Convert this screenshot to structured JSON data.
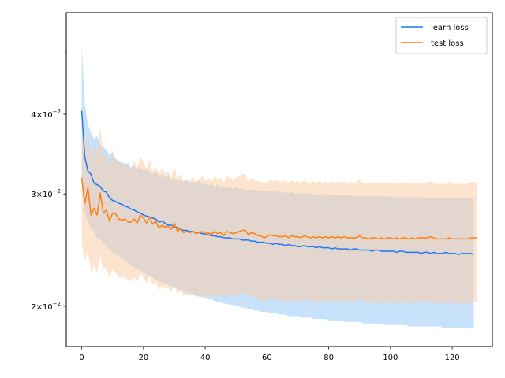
{
  "chart_data": {
    "type": "line",
    "title": "",
    "xlabel": "",
    "ylabel": "",
    "xlim": [
      -5,
      133
    ],
    "ylim": [
      0.0173,
      0.0577
    ],
    "yscale": "log",
    "grid": false,
    "legend_position": "top-right",
    "x_ticks": [
      0,
      20,
      40,
      60,
      80,
      100,
      120
    ],
    "x_tick_labels": [
      "0",
      "20",
      "40",
      "60",
      "80",
      "100",
      "120"
    ],
    "y_ticks": [
      0.02,
      0.03,
      0.04
    ],
    "y_tick_labels": [
      {
        "mantissa": "2",
        "exponent": "−2"
      },
      {
        "mantissa": "3",
        "exponent": "−2"
      },
      {
        "mantissa": "4",
        "exponent": "−2"
      }
    ],
    "y_minor_ticks": [
      0.05
    ],
    "series": [
      {
        "name": "learn loss",
        "color": "#1f77f4",
        "band_color": "#9ccafa",
        "x_step": 1,
        "values": [
          0.0405,
          0.0343,
          0.0326,
          0.0322,
          0.0312,
          0.031,
          0.0308,
          0.0303,
          0.0302,
          0.0296,
          0.0293,
          0.0292,
          0.029,
          0.0289,
          0.0287,
          0.0286,
          0.0284,
          0.0283,
          0.0281,
          0.028,
          0.0278,
          0.0277,
          0.0276,
          0.0275,
          0.0274,
          0.0271,
          0.0272,
          0.027,
          0.0268,
          0.0268,
          0.0266,
          0.0266,
          0.0264,
          0.0263,
          0.0263,
          0.0262,
          0.0262,
          0.0261,
          0.0261,
          0.026,
          0.0259,
          0.0259,
          0.0258,
          0.0258,
          0.0257,
          0.0257,
          0.0256,
          0.0256,
          0.0256,
          0.0255,
          0.0255,
          0.0255,
          0.0254,
          0.0254,
          0.0254,
          0.0253,
          0.0253,
          0.0252,
          0.0252,
          0.0252,
          0.0251,
          0.0251,
          0.025,
          0.0251,
          0.025,
          0.025,
          0.0249,
          0.025,
          0.0249,
          0.0249,
          0.0248,
          0.0248,
          0.0249,
          0.0248,
          0.0248,
          0.0248,
          0.0247,
          0.0248,
          0.0247,
          0.0247,
          0.0247,
          0.0246,
          0.0247,
          0.0246,
          0.0246,
          0.0246,
          0.0246,
          0.0245,
          0.0246,
          0.0246,
          0.0245,
          0.0245,
          0.0245,
          0.0245,
          0.0244,
          0.0245,
          0.0245,
          0.0244,
          0.0244,
          0.0244,
          0.0244,
          0.0244,
          0.0243,
          0.0244,
          0.0244,
          0.0243,
          0.0243,
          0.0243,
          0.0243,
          0.0243,
          0.0242,
          0.0243,
          0.0243,
          0.0242,
          0.0243,
          0.0242,
          0.0242,
          0.0242,
          0.0243,
          0.0242,
          0.0242,
          0.0242,
          0.0241,
          0.0242,
          0.0242,
          0.0242,
          0.0242,
          0.0241
        ],
        "upper": [
          0.0515,
          0.0415,
          0.0385,
          0.0375,
          0.0365,
          0.037,
          0.0358,
          0.0355,
          0.0352,
          0.0345,
          0.035,
          0.034,
          0.0338,
          0.0336,
          0.0334,
          0.0335,
          0.033,
          0.0332,
          0.0328,
          0.033,
          0.0326,
          0.0328,
          0.0324,
          0.0322,
          0.0325,
          0.032,
          0.0322,
          0.0318,
          0.032,
          0.0316,
          0.0318,
          0.0315,
          0.0316,
          0.0313,
          0.0315,
          0.0312,
          0.0314,
          0.0311,
          0.0316,
          0.031,
          0.0312,
          0.0309,
          0.0311,
          0.0308,
          0.031,
          0.0307,
          0.0309,
          0.0306,
          0.0308,
          0.0305,
          0.0307,
          0.0305,
          0.0306,
          0.0304,
          0.0305,
          0.0304,
          0.0305,
          0.0303,
          0.0304,
          0.0303,
          0.0304,
          0.0302,
          0.0303,
          0.0302,
          0.0303,
          0.0301,
          0.0302,
          0.0301,
          0.0302,
          0.03,
          0.0301,
          0.03,
          0.0301,
          0.03,
          0.0301,
          0.0299,
          0.03,
          0.0299,
          0.03,
          0.0299,
          0.03,
          0.0298,
          0.0299,
          0.0298,
          0.0299,
          0.0298,
          0.0299,
          0.0298,
          0.0299,
          0.0297,
          0.0298,
          0.0298,
          0.0298,
          0.0297,
          0.0298,
          0.0297,
          0.0298,
          0.0297,
          0.0298,
          0.0297,
          0.0297,
          0.0297,
          0.0297,
          0.0296,
          0.0297,
          0.0296,
          0.0297,
          0.0296,
          0.0297,
          0.0296,
          0.0297,
          0.0296,
          0.0296,
          0.0296,
          0.0296,
          0.0296,
          0.0296,
          0.0296,
          0.0296,
          0.0296,
          0.0296,
          0.0296,
          0.0296,
          0.0296,
          0.0296,
          0.0296,
          0.0296,
          0.0296
        ],
        "lower": [
          0.0312,
          0.028,
          0.0272,
          0.0265,
          0.0262,
          0.0256,
          0.0255,
          0.0251,
          0.0249,
          0.0245,
          0.0243,
          0.0241,
          0.024,
          0.0238,
          0.0236,
          0.0234,
          0.0232,
          0.023,
          0.0229,
          0.0227,
          0.0226,
          0.0224,
          0.0223,
          0.0222,
          0.022,
          0.0219,
          0.0218,
          0.0217,
          0.0216,
          0.0215,
          0.0214,
          0.0213,
          0.0212,
          0.0211,
          0.021,
          0.021,
          0.0209,
          0.0208,
          0.0207,
          0.0207,
          0.0206,
          0.0205,
          0.0205,
          0.0204,
          0.0203,
          0.0203,
          0.0202,
          0.0202,
          0.0201,
          0.0201,
          0.02,
          0.02,
          0.0199,
          0.0199,
          0.0198,
          0.0198,
          0.0197,
          0.0197,
          0.0196,
          0.0196,
          0.0196,
          0.0195,
          0.0195,
          0.0195,
          0.0194,
          0.0194,
          0.0194,
          0.0193,
          0.0193,
          0.0193,
          0.0193,
          0.0192,
          0.0192,
          0.0192,
          0.0192,
          0.0191,
          0.0191,
          0.0191,
          0.0191,
          0.0191,
          0.019,
          0.019,
          0.019,
          0.019,
          0.019,
          0.0189,
          0.0189,
          0.0189,
          0.0189,
          0.0189,
          0.0189,
          0.0188,
          0.0188,
          0.0188,
          0.0188,
          0.0188,
          0.0188,
          0.0188,
          0.0187,
          0.0187,
          0.0187,
          0.0187,
          0.0187,
          0.0187,
          0.0187,
          0.0187,
          0.0186,
          0.0186,
          0.0186,
          0.0186,
          0.0186,
          0.0186,
          0.0186,
          0.0186,
          0.0186,
          0.0186,
          0.0186,
          0.0185,
          0.0185,
          0.0185,
          0.0185,
          0.0185,
          0.0185,
          0.0185,
          0.0185,
          0.0185,
          0.0185,
          0.0185
        ]
      },
      {
        "name": "test loss",
        "color": "#ff7f0e",
        "band_color": "#fbc9a0",
        "x_step": 1,
        "values": [
          0.0318,
          0.029,
          0.0307,
          0.0278,
          0.0285,
          0.0278,
          0.0301,
          0.028,
          0.0283,
          0.0272,
          0.028,
          0.0279,
          0.0274,
          0.0273,
          0.0274,
          0.0271,
          0.0271,
          0.0274,
          0.027,
          0.0278,
          0.0275,
          0.027,
          0.0276,
          0.0269,
          0.0272,
          0.0265,
          0.0268,
          0.0266,
          0.0267,
          0.0264,
          0.027,
          0.0262,
          0.0265,
          0.0261,
          0.0262,
          0.0261,
          0.0262,
          0.026,
          0.0261,
          0.0262,
          0.026,
          0.0261,
          0.0259,
          0.0262,
          0.026,
          0.0261,
          0.0258,
          0.0262,
          0.0261,
          0.026,
          0.0261,
          0.0262,
          0.0263,
          0.0263,
          0.0259,
          0.0261,
          0.026,
          0.0258,
          0.0258,
          0.0256,
          0.0257,
          0.0259,
          0.0258,
          0.0258,
          0.0257,
          0.0257,
          0.0258,
          0.0256,
          0.0258,
          0.0257,
          0.0257,
          0.0256,
          0.0258,
          0.0257,
          0.0256,
          0.0257,
          0.0256,
          0.0257,
          0.0256,
          0.0257,
          0.0256,
          0.0257,
          0.0256,
          0.0257,
          0.0256,
          0.0257,
          0.0256,
          0.0256,
          0.0256,
          0.0256,
          0.0258,
          0.0256,
          0.0256,
          0.0255,
          0.0256,
          0.0256,
          0.0255,
          0.0256,
          0.0255,
          0.0256,
          0.0256,
          0.0255,
          0.0256,
          0.0255,
          0.0256,
          0.0256,
          0.0255,
          0.0256,
          0.0255,
          0.0256,
          0.0256,
          0.0256,
          0.0256,
          0.0257,
          0.0256,
          0.0255,
          0.0255,
          0.0255,
          0.0255,
          0.0256,
          0.0255,
          0.0255,
          0.0255,
          0.0255,
          0.0255,
          0.0255,
          0.0256,
          0.0256,
          0.0256
        ],
        "upper": [
          0.0402,
          0.0355,
          0.0375,
          0.0345,
          0.0355,
          0.0348,
          0.0382,
          0.034,
          0.035,
          0.033,
          0.0345,
          0.0342,
          0.0336,
          0.0333,
          0.0337,
          0.033,
          0.033,
          0.0338,
          0.0328,
          0.0343,
          0.0337,
          0.0328,
          0.034,
          0.0325,
          0.0331,
          0.0322,
          0.033,
          0.0322,
          0.0325,
          0.0318,
          0.0332,
          0.0316,
          0.0322,
          0.0315,
          0.0316,
          0.0316,
          0.0318,
          0.0314,
          0.0316,
          0.032,
          0.0315,
          0.0318,
          0.0313,
          0.032,
          0.0316,
          0.0318,
          0.0312,
          0.032,
          0.0318,
          0.0316,
          0.0318,
          0.032,
          0.0322,
          0.0322,
          0.0314,
          0.0318,
          0.0316,
          0.0314,
          0.0314,
          0.0312,
          0.0313,
          0.0316,
          0.0314,
          0.0315,
          0.0313,
          0.0313,
          0.0315,
          0.0312,
          0.0315,
          0.0313,
          0.0314,
          0.0312,
          0.0315,
          0.0313,
          0.0312,
          0.0314,
          0.0312,
          0.0314,
          0.0312,
          0.0314,
          0.0312,
          0.0314,
          0.0312,
          0.0314,
          0.0312,
          0.0314,
          0.0312,
          0.0313,
          0.0312,
          0.0313,
          0.0316,
          0.0312,
          0.0313,
          0.0311,
          0.0313,
          0.0312,
          0.0311,
          0.0313,
          0.0311,
          0.0313,
          0.0312,
          0.0311,
          0.0313,
          0.0311,
          0.0313,
          0.0312,
          0.0311,
          0.0313,
          0.0311,
          0.0313,
          0.0312,
          0.0312,
          0.0313,
          0.0314,
          0.0312,
          0.0311,
          0.0311,
          0.0311,
          0.0311,
          0.0313,
          0.0311,
          0.0311,
          0.0311,
          0.0311,
          0.0311,
          0.0311,
          0.0313,
          0.0313,
          0.0313
        ],
        "lower": [
          0.025,
          0.0236,
          0.0245,
          0.0226,
          0.0232,
          0.0226,
          0.024,
          0.0228,
          0.023,
          0.0222,
          0.0228,
          0.0226,
          0.0222,
          0.0222,
          0.0222,
          0.022,
          0.0219,
          0.0222,
          0.0218,
          0.0225,
          0.0222,
          0.0217,
          0.0223,
          0.0216,
          0.0218,
          0.0212,
          0.0215,
          0.0213,
          0.0214,
          0.0211,
          0.0216,
          0.0209,
          0.0212,
          0.0208,
          0.0209,
          0.0208,
          0.0209,
          0.0207,
          0.0208,
          0.0209,
          0.0207,
          0.0208,
          0.0206,
          0.0209,
          0.0207,
          0.0208,
          0.0205,
          0.0209,
          0.0208,
          0.0207,
          0.0208,
          0.0209,
          0.021,
          0.021,
          0.0206,
          0.0208,
          0.0207,
          0.0205,
          0.0205,
          0.0203,
          0.0204,
          0.0206,
          0.0205,
          0.0205,
          0.0204,
          0.0204,
          0.0205,
          0.0203,
          0.0205,
          0.0204,
          0.0204,
          0.0203,
          0.0205,
          0.0204,
          0.0203,
          0.0204,
          0.0203,
          0.0204,
          0.0203,
          0.0204,
          0.0203,
          0.0204,
          0.0203,
          0.0204,
          0.0203,
          0.0204,
          0.0203,
          0.0203,
          0.0203,
          0.0203,
          0.0205,
          0.0203,
          0.0203,
          0.0202,
          0.0203,
          0.0203,
          0.0202,
          0.0203,
          0.0202,
          0.0203,
          0.0203,
          0.0202,
          0.0203,
          0.0202,
          0.0203,
          0.0203,
          0.0202,
          0.0203,
          0.0202,
          0.0203,
          0.0203,
          0.0203,
          0.0203,
          0.0204,
          0.0203,
          0.0202,
          0.0202,
          0.0202,
          0.0202,
          0.0203,
          0.0202,
          0.0202,
          0.0202,
          0.0202,
          0.0202,
          0.0202,
          0.0203,
          0.0203,
          0.0203
        ]
      }
    ]
  }
}
